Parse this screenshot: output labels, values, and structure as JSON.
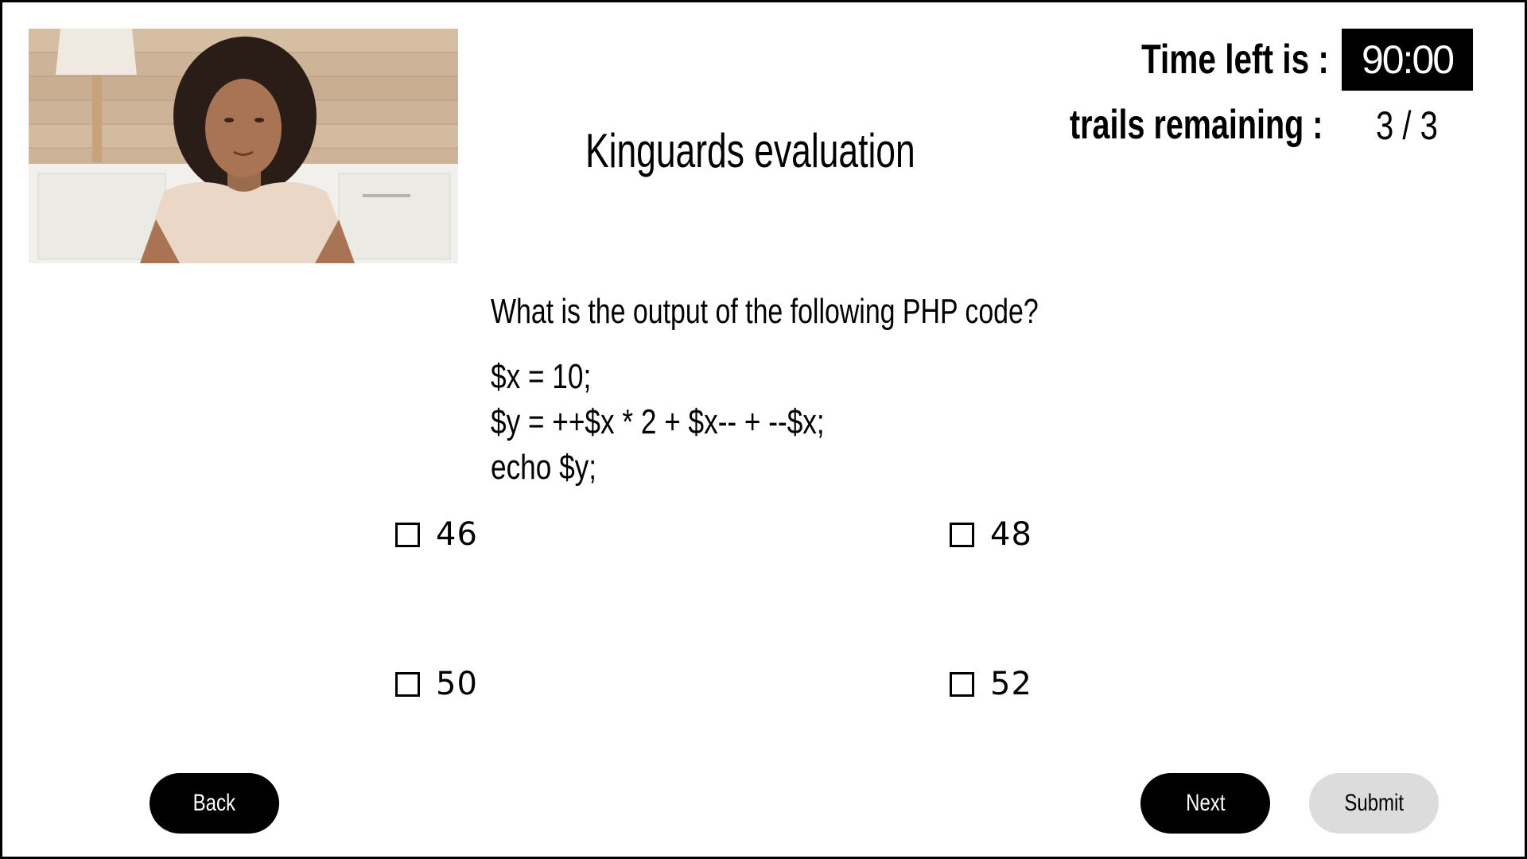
{
  "header": {
    "title": "Kinguards evaluation",
    "timer_label": "Time left is :",
    "timer_value": "90:00",
    "trails_label": "trails remaining :",
    "trails_value": "3 / 3"
  },
  "webcam": {
    "description_icon": "webcam-feed"
  },
  "question": {
    "text": "What is the output of the following PHP code?",
    "code_lines": [
      "$x = 10;",
      "$y = ++$x * 2 + $x-- + --$x;",
      "echo $y;"
    ]
  },
  "options": [
    {
      "label": "46",
      "checked": false
    },
    {
      "label": "48",
      "checked": false
    },
    {
      "label": "50",
      "checked": false
    },
    {
      "label": "52",
      "checked": false
    }
  ],
  "buttons": {
    "back": "Back",
    "next": "Next",
    "submit": "Submit"
  },
  "colors": {
    "primary": "#000000",
    "disabled": "#dcdcdc",
    "background": "#ffffff"
  }
}
